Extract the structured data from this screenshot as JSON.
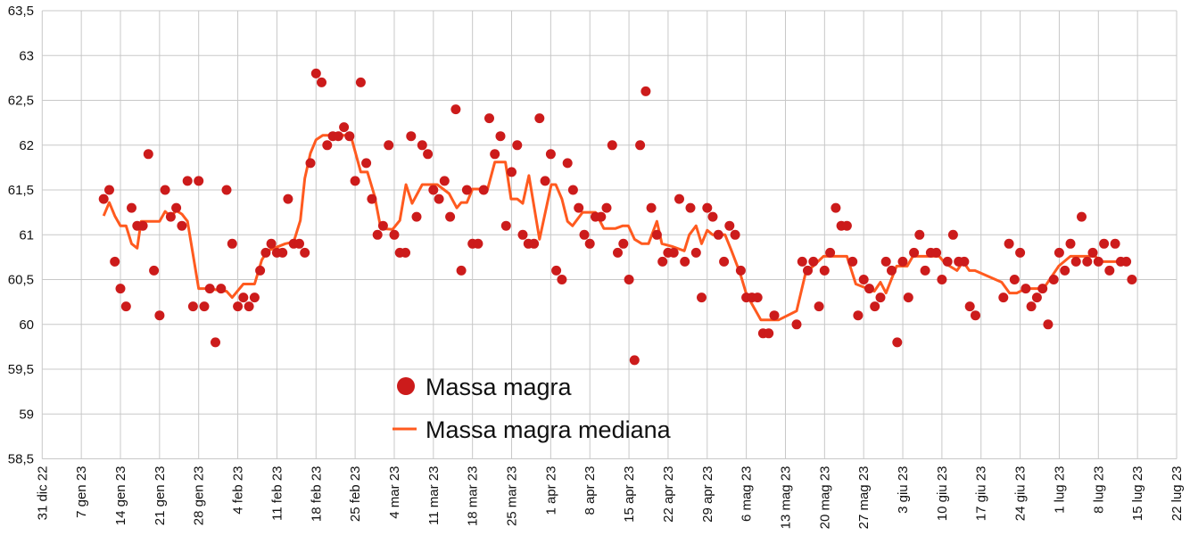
{
  "chart_data": {
    "type": "scatter",
    "title": "",
    "xlabel": "",
    "ylabel": "",
    "x_unit": "days since 31 dic 22",
    "xlim": [
      0,
      203
    ],
    "ylim": [
      58.5,
      63.5
    ],
    "grid": true,
    "legend_position": "bottom-center",
    "y_ticks": [
      "58,5",
      "59",
      "59,5",
      "60",
      "60,5",
      "61",
      "61,5",
      "62",
      "62,5",
      "63",
      "63,5"
    ],
    "y_tick_values": [
      58.5,
      59,
      59.5,
      60,
      60.5,
      61,
      61.5,
      62,
      62.5,
      63,
      63.5
    ],
    "x_ticks": [
      "31 dic 22",
      "7 gen 23",
      "14 gen 23",
      "21 gen 23",
      "28 gen 23",
      "4 feb 23",
      "11 feb 23",
      "18 feb 23",
      "25 feb 23",
      "4 mar 23",
      "11 mar 23",
      "18 mar 23",
      "25 mar 23",
      "1 apr 23",
      "8 apr 23",
      "15 apr 23",
      "22 apr 23",
      "29 apr 23",
      "6 mag 23",
      "13 mag 23",
      "20 mag 23",
      "27 mag 23",
      "3 giu 23",
      "10 giu 23",
      "17 giu 23",
      "24 giu 23",
      "1 lug 23",
      "8 lug 23",
      "15 lug 23",
      "22 lug 23"
    ],
    "series": [
      {
        "name": "Massa magra",
        "type": "scatter",
        "color": "#cc1b1b",
        "segments": [
          {
            "start_day": 11,
            "values": [
              61.4,
              61.5,
              60.7,
              60.4,
              60.2,
              61.3,
              61.1,
              61.1,
              61.9,
              60.6,
              60.1,
              61.5,
              61.2,
              61.3,
              61.1,
              61.6,
              60.2,
              61.6,
              60.2,
              60.4,
              59.8,
              60.4,
              61.5,
              60.9,
              60.2,
              60.3,
              60.2,
              60.3,
              60.6,
              60.8,
              60.9,
              60.8,
              60.8,
              61.4,
              60.9,
              60.9,
              60.8,
              61.8,
              62.8,
              62.7,
              62.0,
              62.1,
              62.1,
              62.2,
              62.1,
              61.6,
              62.7,
              61.8,
              61.4,
              61.0,
              61.1,
              62.0,
              61.0,
              60.8,
              60.8,
              62.1,
              61.2,
              62.0,
              61.9,
              61.5,
              61.4,
              61.6,
              61.2,
              62.4,
              60.6,
              61.5,
              60.9,
              60.9,
              61.5,
              62.3,
              61.9,
              62.1,
              61.1,
              61.7,
              62.0,
              61.0,
              60.9,
              60.9,
              62.3,
              61.6,
              61.9,
              60.6,
              60.5,
              61.8,
              61.5,
              61.3,
              61.0,
              60.9,
              61.2,
              61.2,
              61.3,
              62.0,
              60.8,
              60.9,
              60.5,
              59.6,
              62.0,
              62.6,
              61.3,
              61.0,
              60.7,
              60.8,
              60.8,
              61.4,
              60.7,
              61.3,
              60.8,
              60.3,
              61.3,
              61.2,
              61.0,
              60.7,
              61.1,
              61.0,
              60.6,
              60.3,
              60.3,
              60.3,
              59.9,
              59.9,
              60.1
            ]
          },
          {
            "start_day": 135,
            "values": [
              60.0,
              60.7,
              60.6,
              60.7,
              60.2,
              60.6,
              60.8,
              61.3,
              61.1,
              61.1,
              60.7,
              60.1,
              60.5,
              60.4,
              60.2,
              60.3,
              60.7,
              60.6,
              59.8,
              60.7,
              60.3,
              60.8,
              61.0,
              60.6,
              60.8,
              60.8,
              60.5,
              60.7,
              61.0,
              60.7,
              60.7,
              60.2,
              60.1
            ]
          },
          {
            "start_day": 172,
            "values": [
              60.3,
              60.9,
              60.5,
              60.8,
              60.4,
              60.2,
              60.3,
              60.4,
              60.0,
              60.5,
              60.8,
              60.6,
              60.9,
              60.7,
              61.2,
              60.7,
              60.8,
              60.7,
              60.9,
              60.6,
              60.9,
              60.7,
              60.7,
              60.5
            ]
          }
        ]
      },
      {
        "name": "Massa magra mediana",
        "type": "line",
        "color": "#ff5a1f",
        "points": [
          [
            11,
            61.21
          ],
          [
            12,
            61.36
          ],
          [
            13,
            61.21
          ],
          [
            14,
            61.1
          ],
          [
            15,
            61.1
          ],
          [
            16,
            60.9
          ],
          [
            17,
            60.85
          ],
          [
            17.7,
            61.15
          ],
          [
            21,
            61.15
          ],
          [
            22,
            61.26
          ],
          [
            23,
            61.2
          ],
          [
            24,
            61.27
          ],
          [
            25,
            61.23
          ],
          [
            26,
            61.15
          ],
          [
            28,
            60.4
          ],
          [
            29.7,
            60.4
          ],
          [
            33,
            60.37
          ],
          [
            34,
            60.3
          ],
          [
            36,
            60.45
          ],
          [
            38,
            60.45
          ],
          [
            39.3,
            60.72
          ],
          [
            40.3,
            60.82
          ],
          [
            43.5,
            60.9
          ],
          [
            45,
            60.92
          ],
          [
            46.2,
            61.16
          ],
          [
            47,
            61.63
          ],
          [
            48,
            61.91
          ],
          [
            49,
            62.06
          ],
          [
            50.2,
            62.11
          ],
          [
            55.2,
            62.11
          ],
          [
            56,
            61.93
          ],
          [
            57,
            61.7
          ],
          [
            58.2,
            61.7
          ],
          [
            59.5,
            61.43
          ],
          [
            60.6,
            61.07
          ],
          [
            62.7,
            61.06
          ],
          [
            64,
            61.16
          ],
          [
            65.1,
            61.56
          ],
          [
            66.2,
            61.35
          ],
          [
            68,
            61.56
          ],
          [
            70.7,
            61.56
          ],
          [
            72.8,
            61.46
          ],
          [
            74.2,
            61.3
          ],
          [
            75,
            61.36
          ],
          [
            76,
            61.36
          ],
          [
            77,
            61.51
          ],
          [
            79.7,
            61.51
          ],
          [
            81,
            61.81
          ],
          [
            82.9,
            61.81
          ],
          [
            83.9,
            61.4
          ],
          [
            85,
            61.4
          ],
          [
            86,
            61.35
          ],
          [
            87.1,
            61.66
          ],
          [
            89,
            60.95
          ],
          [
            91.1,
            61.56
          ],
          [
            91.9,
            61.56
          ],
          [
            93,
            61.4
          ],
          [
            94,
            61.15
          ],
          [
            94.9,
            61.1
          ],
          [
            96.7,
            61.25
          ],
          [
            99,
            61.25
          ],
          [
            100.5,
            61.07
          ],
          [
            102.6,
            61.07
          ],
          [
            103.9,
            61.1
          ],
          [
            104.9,
            61.1
          ],
          [
            106,
            60.95
          ],
          [
            107.3,
            60.9
          ],
          [
            108.5,
            60.9
          ],
          [
            110,
            61.15
          ],
          [
            110.9,
            60.9
          ],
          [
            112.7,
            60.87
          ],
          [
            114.9,
            60.82
          ],
          [
            115.8,
            61.0
          ],
          [
            117,
            61.1
          ],
          [
            118,
            60.9
          ],
          [
            119,
            61.05
          ],
          [
            120,
            61.0
          ],
          [
            122.2,
            61.0
          ],
          [
            123.3,
            60.83
          ],
          [
            124.9,
            60.57
          ],
          [
            126,
            60.34
          ],
          [
            128.6,
            60.05
          ],
          [
            131.8,
            60.05
          ],
          [
            135,
            60.15
          ],
          [
            136.6,
            60.57
          ],
          [
            139.8,
            60.76
          ],
          [
            144,
            60.76
          ],
          [
            145.6,
            60.45
          ],
          [
            148.9,
            60.37
          ],
          [
            150,
            60.47
          ],
          [
            151,
            60.35
          ],
          [
            152.9,
            60.65
          ],
          [
            154.8,
            60.65
          ],
          [
            155.8,
            60.76
          ],
          [
            160.5,
            60.76
          ],
          [
            161.6,
            60.68
          ],
          [
            163.7,
            60.6
          ],
          [
            164.8,
            60.7
          ],
          [
            165.9,
            60.6
          ],
          [
            166.9,
            60.6
          ],
          [
            171.7,
            60.47
          ],
          [
            173.1,
            60.35
          ],
          [
            174.4,
            60.35
          ],
          [
            176,
            60.4
          ],
          [
            179.2,
            60.4
          ],
          [
            181.9,
            60.65
          ],
          [
            184,
            60.76
          ],
          [
            188.5,
            60.76
          ],
          [
            189.2,
            60.7
          ],
          [
            194.7,
            60.7
          ]
        ]
      }
    ]
  }
}
